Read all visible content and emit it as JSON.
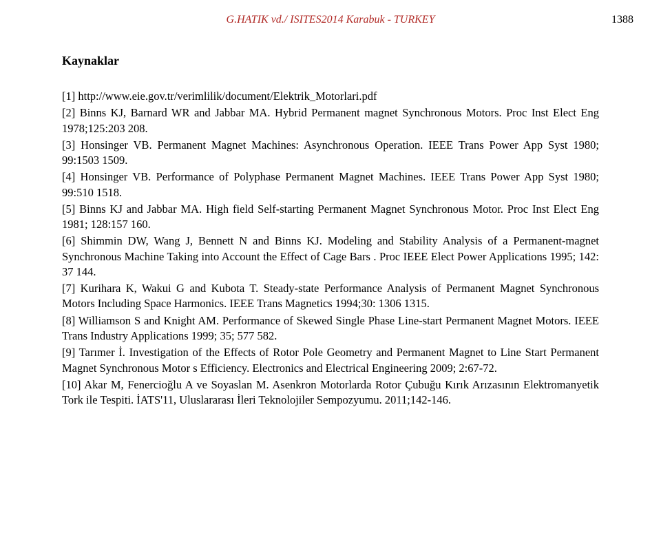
{
  "header": {
    "running": "G.HATIK vd./ ISITES2014 Karabuk - TURKEY",
    "page_number": "1388"
  },
  "section": {
    "title": "Kaynaklar"
  },
  "references": [
    "[1] http://www.eie.gov.tr/verimlilik/document/Elektrik_Motorlari.pdf",
    "[2] Binns KJ, Barnard WR and Jabbar MA. Hybrid Permanent magnet Synchronous Motors. Proc Inst Elect Eng 1978;125:203 208.",
    "[3] Honsinger VB. Permanent Magnet Machines: Asynchronous Operation. IEEE Trans Power App Syst 1980; 99:1503 1509.",
    "[4] Honsinger VB. Performance of Polyphase Permanent Magnet Machines.  IEEE Trans Power App Syst 1980; 99:510 1518.",
    "[5] Binns KJ and Jabbar MA. High field Self-starting Permanent Magnet Synchronous Motor. Proc Inst Elect Eng 1981; 128:157 160.",
    "[6] Shimmin DW, Wang J, Bennett N and Binns KJ. Modeling and Stability Analysis of a Permanent-magnet Synchronous Machine Taking into Account the Effect of Cage Bars . Proc IEEE Elect Power Applications 1995; 142: 37 144.",
    "[7] Kurihara K, Wakui G and Kubota T. Steady-state Performance Analysis of Permanent Magnet Synchronous Motors Including Space Harmonics. IEEE Trans Magnetics 1994;30: 1306 1315.",
    "[8] Williamson S and Knight AM. Performance of Skewed Single Phase Line-start Permanent Magnet Motors. IEEE Trans Industry Applications 1999; 35; 577 582.",
    "[9] Tarımer İ. Investigation of the Effects of Rotor Pole Geometry and Permanent Magnet to Line Start Permanent Magnet Synchronous Motor s Efficiency. Electronics and Electrical Engineering 2009; 2:67-72.",
    "[10] Akar M, Fenercioğlu A ve Soyaslan M. Asenkron Motorlarda Rotor Çubuğu Kırık Arızasının Elektromanyetik Tork ile Tespiti. İATS'11, Uluslararası İleri Teknolojiler Sempozyumu. 2011;142-146."
  ],
  "colors": {
    "header_color": "#b12a26",
    "text_color": "#000000",
    "background": "#ffffff"
  },
  "typography": {
    "body_font": "Times New Roman",
    "body_size_pt": 12,
    "title_weight": "bold"
  }
}
